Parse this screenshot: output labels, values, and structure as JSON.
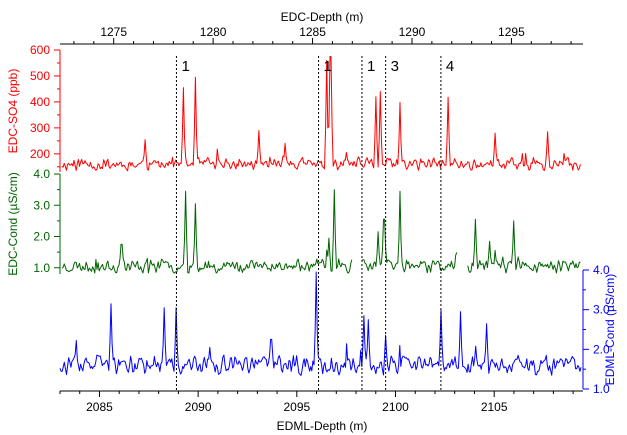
{
  "chart_data": {
    "type": "line",
    "top_axis": {
      "label": "EDC-Depth (m)",
      "range": [
        1272.3,
        1298.6
      ],
      "ticks": [
        1275,
        1280,
        1285,
        1290,
        1295
      ],
      "tick_labels": [
        "1275",
        "1280",
        "1285",
        "1290",
        "1295"
      ]
    },
    "bottom_axis": {
      "label": "EDML-Depth (m)",
      "range": [
        2083,
        2109.5
      ],
      "ticks": [
        2085,
        2090,
        2095,
        2100,
        2105
      ],
      "tick_labels": [
        "2085",
        "2090",
        "2095",
        "2100",
        "2105"
      ]
    },
    "series": [
      {
        "name": "EDC-SO4",
        "axis_label": "EDC-SO4 (ppb)",
        "color": "#ff0000",
        "axis_side": "left",
        "ylim": [
          130,
          600
        ],
        "ticks": [
          200,
          300,
          400,
          500,
          600
        ],
        "tick_labels": [
          "200",
          "300",
          "400",
          "500",
          "600"
        ],
        "baseline": 160,
        "noise": 32,
        "seed": 11,
        "x_step": 0.055,
        "x_range": [
          1272.4,
          1298.5
        ],
        "peaks": [
          {
            "x": 1278.5,
            "y": 455
          },
          {
            "x": 1279.1,
            "y": 495
          },
          {
            "x": 1285.7,
            "y": 560
          },
          {
            "x": 1285.9,
            "y": 575
          },
          {
            "x": 1288.2,
            "y": 420
          },
          {
            "x": 1288.4,
            "y": 440
          },
          {
            "x": 1289.4,
            "y": 398
          },
          {
            "x": 1291.8,
            "y": 418
          },
          {
            "x": 1282.3,
            "y": 290
          },
          {
            "x": 1276.6,
            "y": 255
          },
          {
            "x": 1294.2,
            "y": 280
          },
          {
            "x": 1296.8,
            "y": 285
          },
          {
            "x": 1283.6,
            "y": 240
          }
        ]
      },
      {
        "name": "EDC-Cond",
        "axis_label": "EDC-Cond (µS/cm)",
        "color": "#006400",
        "axis_side": "left",
        "ylim": [
          0.8,
          4.0
        ],
        "ticks": [
          1.0,
          2.0,
          3.0,
          4.0
        ],
        "tick_labels": [
          "1.0",
          "2.0",
          "3.0",
          "4.0"
        ],
        "baseline": 1.05,
        "noise": 0.28,
        "seed": 23,
        "x_step": 0.055,
        "x_range": [
          1272.4,
          1298.5
        ],
        "gaps": [
          [
            1287.0,
            1287.45
          ],
          [
            1292.3,
            1292.8
          ]
        ],
        "peaks": [
          {
            "x": 1275.4,
            "y": 1.75
          },
          {
            "x": 1278.6,
            "y": 3.45
          },
          {
            "x": 1279.1,
            "y": 3.05
          },
          {
            "x": 1285.8,
            "y": 1.95
          },
          {
            "x": 1286.1,
            "y": 3.5
          },
          {
            "x": 1288.3,
            "y": 2.15
          },
          {
            "x": 1288.6,
            "y": 2.55
          },
          {
            "x": 1289.4,
            "y": 3.45
          },
          {
            "x": 1293.2,
            "y": 2.55
          },
          {
            "x": 1295.1,
            "y": 2.5
          },
          {
            "x": 1293.9,
            "y": 1.85
          }
        ]
      },
      {
        "name": "EDML-Cond",
        "axis_label": "EDML-Cond (µS/cm)",
        "color": "#0000ff",
        "axis_side": "right",
        "ylim": [
          1.0,
          4.0
        ],
        "ticks": [
          1.0,
          2.0,
          3.0,
          4.0
        ],
        "tick_labels": [
          "1.0",
          "2.0",
          "3.0",
          "4.0"
        ],
        "baseline": 1.6,
        "noise": 0.32,
        "seed": 37,
        "x_step": 0.055,
        "x_range": [
          2083.0,
          2109.4
        ],
        "peaks": [
          {
            "x": 2085.6,
            "y": 3.15
          },
          {
            "x": 2088.3,
            "y": 3.05
          },
          {
            "x": 2088.9,
            "y": 3.05
          },
          {
            "x": 2096.0,
            "y": 3.95
          },
          {
            "x": 2098.4,
            "y": 2.85
          },
          {
            "x": 2098.6,
            "y": 2.75
          },
          {
            "x": 2099.5,
            "y": 2.35
          },
          {
            "x": 2102.3,
            "y": 3.0
          },
          {
            "x": 2103.3,
            "y": 2.95
          },
          {
            "x": 2104.6,
            "y": 2.65
          },
          {
            "x": 2093.7,
            "y": 2.25
          },
          {
            "x": 2090.6,
            "y": 2.05
          }
        ]
      }
    ],
    "markers": [
      {
        "x": 2088.9,
        "label": "1"
      },
      {
        "x": 2096.1,
        "label": "1"
      },
      {
        "x": 2098.3,
        "label": "1"
      },
      {
        "x": 2099.5,
        "label": "3"
      },
      {
        "x": 2102.3,
        "label": "4"
      }
    ]
  }
}
